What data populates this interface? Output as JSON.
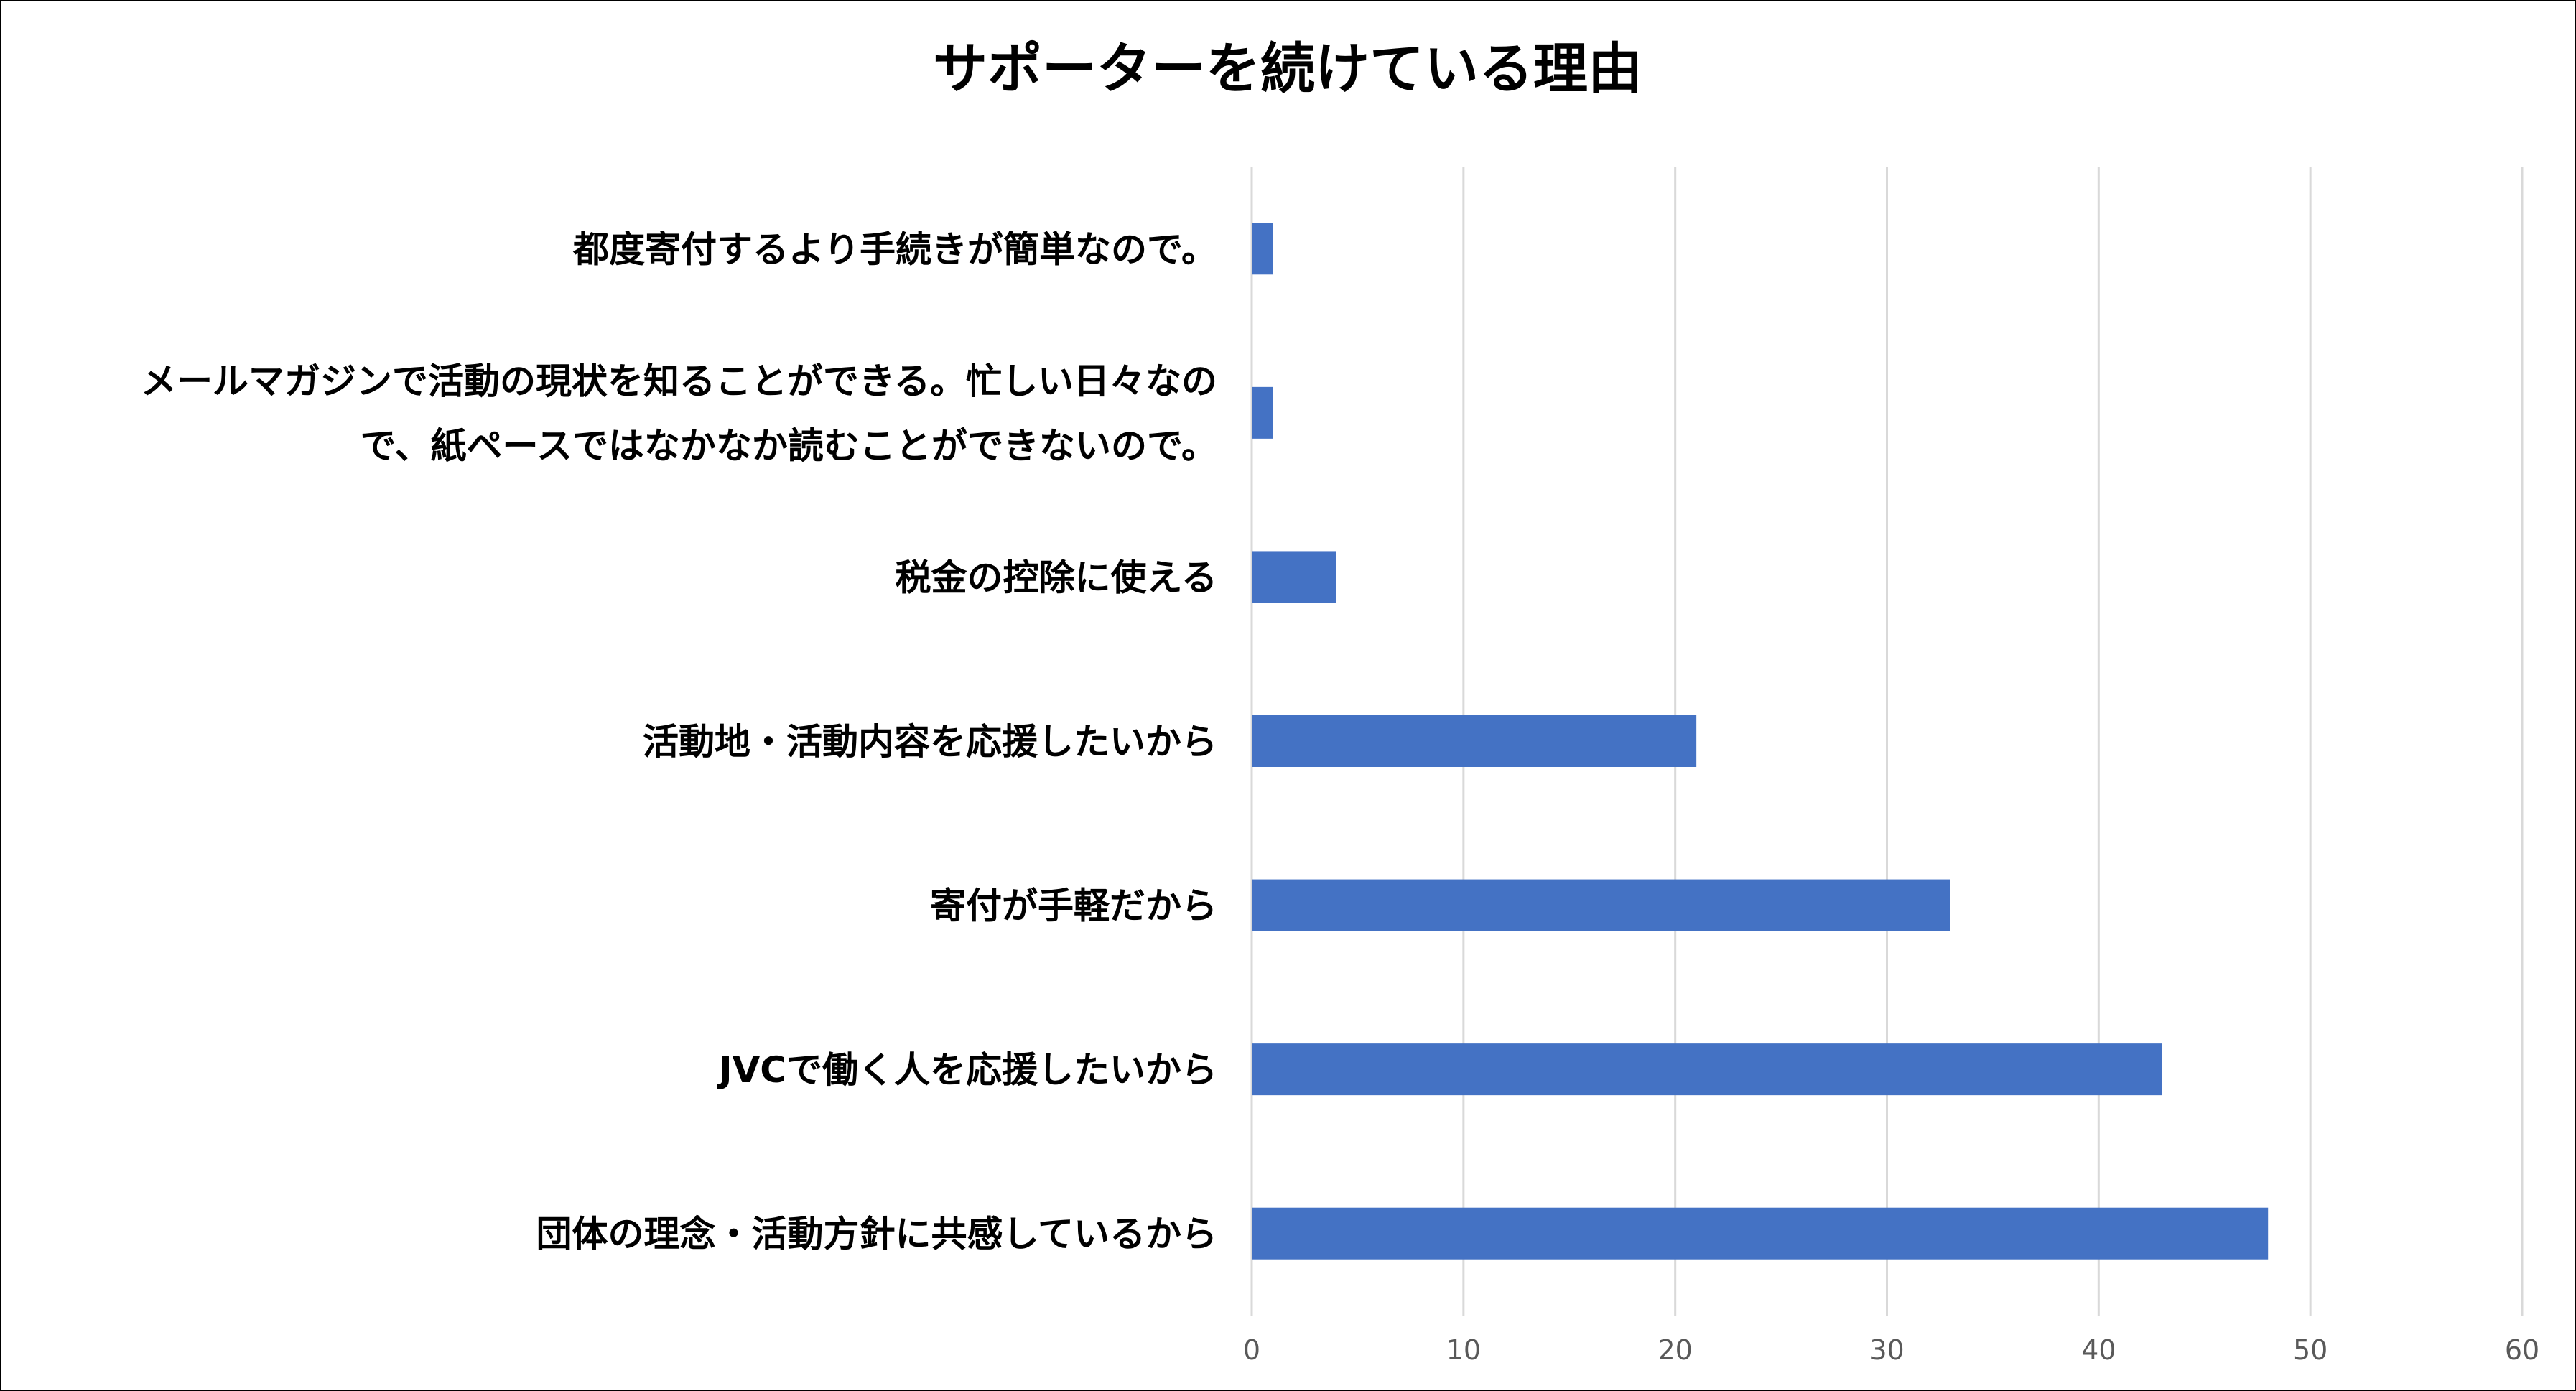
{
  "chart_data": {
    "type": "bar",
    "orientation": "horizontal",
    "title": "サポーターを続けている理由",
    "categories": [
      [
        "都度寄付するより手続きが簡単なので。"
      ],
      [
        "メールマガジンで活動の現状を知ることができる。忙しい日々なの",
        "で、紙ペースではなかなか読むことができないので。"
      ],
      [
        "税金の控除に使える"
      ],
      [
        "活動地・活動内容を応援したいから"
      ],
      [
        "寄付が手軽だから"
      ],
      [
        "JVCで働く人を応援したいから"
      ],
      [
        "団体の理念・活動方針に共感しているから"
      ]
    ],
    "values": [
      1,
      1,
      4,
      21,
      33,
      43,
      48
    ],
    "xlim": [
      0,
      60
    ],
    "xticks": [
      0,
      10,
      20,
      30,
      40,
      50,
      60
    ],
    "grid": true,
    "legend": "none",
    "colors": {
      "bar": "#4472C4",
      "grid": "#D9D9D9",
      "tick_text": "#595959",
      "text": "#000000"
    }
  }
}
